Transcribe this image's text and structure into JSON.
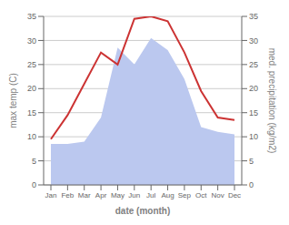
{
  "chart_data": {
    "type": "line",
    "xlabel": "date (month)",
    "ylabel": "max temp (C)",
    "y2label": "med. precipitation (kg/m2)",
    "categories": [
      "Jan",
      "Feb",
      "Mar",
      "Apr",
      "May",
      "Jun",
      "Jul",
      "Aug",
      "Sep",
      "Oct",
      "Nov",
      "Dec"
    ],
    "series": [
      {
        "type": "area",
        "axis": "y2",
        "color": "#bbc8ef",
        "values": [
          8.5,
          8.5,
          9.0,
          14.0,
          28.5,
          25.0,
          30.5,
          28.0,
          22.0,
          12.0,
          11.0,
          10.5
        ]
      },
      {
        "type": "line",
        "color": "#cc3333",
        "values": [
          9.5,
          14.5,
          21.0,
          27.5,
          25.0,
          34.5,
          35.0,
          34.0,
          27.5,
          19.5,
          14.0,
          13.5
        ]
      }
    ],
    "ylim": [
      0,
      35
    ],
    "yticks": [
      0,
      5,
      10,
      15,
      20,
      25,
      30,
      35
    ],
    "y2lim": [
      0,
      35
    ],
    "y2ticks": [
      0,
      5,
      10,
      15,
      20,
      25,
      30,
      35
    ],
    "grid": true
  }
}
